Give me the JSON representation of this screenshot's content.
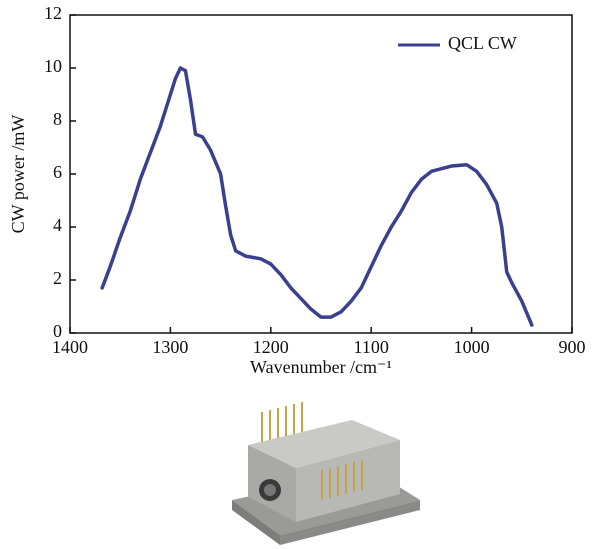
{
  "chart_data": {
    "type": "line",
    "x_label": "Wavenumber /cm⁻¹",
    "y_label": "CW power /mW",
    "x": [
      1368,
      1360,
      1350,
      1340,
      1330,
      1320,
      1310,
      1300,
      1295,
      1290,
      1285,
      1280,
      1275,
      1268,
      1260,
      1250,
      1245,
      1240,
      1235,
      1225,
      1210,
      1200,
      1190,
      1180,
      1170,
      1160,
      1150,
      1140,
      1130,
      1120,
      1110,
      1100,
      1090,
      1080,
      1070,
      1060,
      1050,
      1040,
      1030,
      1020,
      1005,
      995,
      985,
      975,
      970,
      965,
      960,
      950,
      940
    ],
    "series": [
      {
        "name": "QCL CW",
        "color": "#3b3f8f",
        "values": [
          1.7,
          2.5,
          3.6,
          4.6,
          5.8,
          6.8,
          7.8,
          9.0,
          9.6,
          10.0,
          9.9,
          8.8,
          7.5,
          7.4,
          6.9,
          6.0,
          4.8,
          3.7,
          3.1,
          2.9,
          2.8,
          2.6,
          2.2,
          1.7,
          1.3,
          0.9,
          0.6,
          0.6,
          0.8,
          1.2,
          1.7,
          2.5,
          3.3,
          4.0,
          4.6,
          5.3,
          5.8,
          6.1,
          6.2,
          6.3,
          6.35,
          6.1,
          5.6,
          4.9,
          4.0,
          2.3,
          1.9,
          1.2,
          0.3
        ]
      }
    ],
    "xlim": [
      1400,
      900
    ],
    "xticks": [
      1400,
      1300,
      1200,
      1100,
      1000,
      900
    ],
    "ylim": [
      0,
      12
    ],
    "yticks": [
      0,
      2,
      4,
      6,
      8,
      10,
      12
    ],
    "legend": "upper right"
  }
}
